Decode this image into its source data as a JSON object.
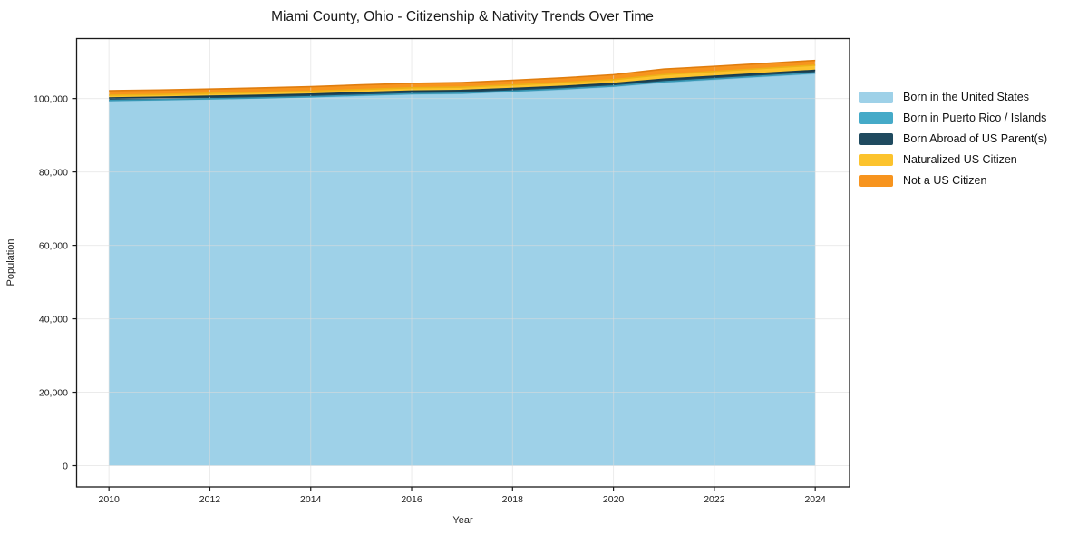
{
  "chart_data": {
    "type": "area",
    "stacked": true,
    "title": "Miami County, Ohio - Citizenship & Nativity Trends Over Time",
    "xlabel": "Year",
    "ylabel": "Population",
    "x": [
      2010,
      2011,
      2012,
      2013,
      2014,
      2015,
      2016,
      2017,
      2018,
      2019,
      2020,
      2021,
      2022,
      2023,
      2024
    ],
    "series": [
      {
        "name": "Born in the United States",
        "color": "#9ed1e8",
        "edge": "#84c2de",
        "values": [
          99400,
          99600,
          99850,
          100100,
          100400,
          100800,
          101200,
          101350,
          101900,
          102500,
          103250,
          104400,
          105200,
          106000,
          106800
        ]
      },
      {
        "name": "Born in Puerto Rico / Islands",
        "color": "#45aac8",
        "edge": "#3797b4",
        "values": [
          60,
          70,
          80,
          80,
          90,
          100,
          100,
          110,
          120,
          130,
          140,
          150,
          160,
          170,
          180
        ]
      },
      {
        "name": "Born Abroad of US Parent(s)",
        "color": "#1f4a5f",
        "edge": "#183c4e",
        "values": [
          700,
          690,
          700,
          710,
          700,
          720,
          730,
          740,
          720,
          710,
          700,
          720,
          710,
          700,
          700
        ]
      },
      {
        "name": "Naturalized US Citizen",
        "color": "#fcc32d",
        "edge": "#edb117",
        "values": [
          740,
          750,
          780,
          800,
          820,
          850,
          880,
          900,
          950,
          1000,
          1050,
          1250,
          1300,
          1350,
          1400
        ]
      },
      {
        "name": "Not a US Citizen",
        "color": "#f7941e",
        "edge": "#e07d0e",
        "values": [
          1230,
          1200,
          1180,
          1200,
          1220,
          1250,
          1230,
          1250,
          1260,
          1300,
          1350,
          1500,
          1400,
          1350,
          1300
        ]
      }
    ],
    "x_ticks": [
      2010,
      2012,
      2014,
      2016,
      2018,
      2020,
      2022,
      2024
    ],
    "x_tick_labels": [
      "2010",
      "2012",
      "2014",
      "2016",
      "2018",
      "2020",
      "2022",
      "2024"
    ],
    "y_ticks": [
      0,
      20000,
      40000,
      60000,
      80000,
      100000
    ],
    "y_tick_labels": [
      "0",
      "20,000",
      "40,000",
      "60,000",
      "80,000",
      "100,000"
    ],
    "xlim": [
      2009.35,
      2024.68
    ],
    "ylim": [
      -5800,
      116460
    ],
    "grid": true,
    "legend_position": "right"
  }
}
